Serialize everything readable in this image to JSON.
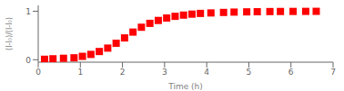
{
  "chart_data": {
    "type": "scatter",
    "x": [
      0.15,
      0.35,
      0.6,
      0.85,
      1.05,
      1.25,
      1.45,
      1.65,
      1.85,
      2.05,
      2.25,
      2.45,
      2.65,
      2.85,
      3.05,
      3.25,
      3.45,
      3.65,
      3.85,
      4.1,
      4.4,
      4.65,
      4.95,
      5.2,
      5.5,
      5.75,
      6.05,
      6.35,
      6.6
    ],
    "values": [
      0.01,
      0.02,
      0.03,
      0.04,
      0.07,
      0.11,
      0.17,
      0.24,
      0.34,
      0.45,
      0.57,
      0.67,
      0.75,
      0.81,
      0.86,
      0.895,
      0.92,
      0.94,
      0.955,
      0.965,
      0.975,
      0.982,
      0.987,
      0.99,
      0.993,
      0.995,
      0.996,
      0.997,
      0.998
    ],
    "color": "#ff0000",
    "marker": "square",
    "xlabel": "Time (h)",
    "ylabel": "(I-I₀)/(I⁦-I₀)",
    "xlim": [
      0,
      7
    ],
    "ylim": [
      -0.05,
      1.12
    ],
    "xticks": [
      0,
      1,
      2,
      3,
      4,
      5,
      6,
      7
    ],
    "yticks": [
      0,
      1
    ],
    "grid": false
  }
}
